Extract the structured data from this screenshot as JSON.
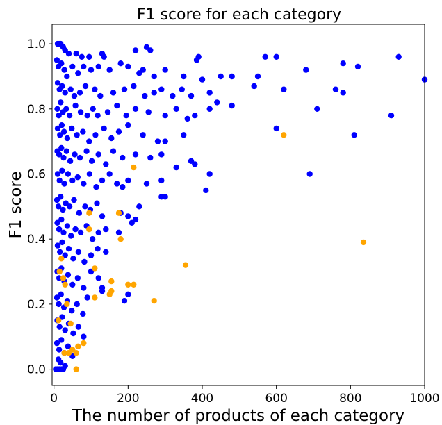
{
  "chart_data": {
    "type": "scatter",
    "title": "F1 score for each category",
    "xlabel": "The number of products of each category",
    "ylabel": "F1 score",
    "xlim": [
      -5,
      1000
    ],
    "ylim": [
      -0.05,
      1.06
    ],
    "xticks": [
      0,
      200,
      400,
      600,
      800,
      1000
    ],
    "yticks": [
      0.0,
      0.2,
      0.4,
      0.6,
      0.8,
      1.0
    ],
    "xtick_labels": [
      "0",
      "200",
      "400",
      "600",
      "800",
      "1000"
    ],
    "ytick_labels": [
      "0.0",
      "0.2",
      "0.4",
      "0.6",
      "0.8",
      "1.0"
    ],
    "grid": false,
    "colors": {
      "primary": "#0000ff",
      "secondary": "#ffa500"
    },
    "series": [
      {
        "color": "#0000ff",
        "points": [
          [
            10,
            1.0
          ],
          [
            14,
            1.0
          ],
          [
            18,
            1.0
          ],
          [
            25,
            0.99
          ],
          [
            30,
            0.98
          ],
          [
            40,
            0.97
          ],
          [
            60,
            0.97
          ],
          [
            75,
            0.96
          ],
          [
            95,
            0.96
          ],
          [
            130,
            0.97
          ],
          [
            135,
            0.96
          ],
          [
            250,
            0.99
          ],
          [
            220,
            0.98
          ],
          [
            260,
            0.98
          ],
          [
            390,
            0.96
          ],
          [
            385,
            0.95
          ],
          [
            570,
            0.96
          ],
          [
            600,
            0.96
          ],
          [
            680,
            0.92
          ],
          [
            780,
            0.94
          ],
          [
            820,
            0.93
          ],
          [
            930,
            0.96
          ],
          [
            1000,
            0.89
          ],
          [
            8,
            0.95
          ],
          [
            12,
            0.93
          ],
          [
            20,
            0.94
          ],
          [
            28,
            0.92
          ],
          [
            35,
            0.9
          ],
          [
            50,
            0.93
          ],
          [
            65,
            0.91
          ],
          [
            80,
            0.93
          ],
          [
            100,
            0.92
          ],
          [
            120,
            0.93
          ],
          [
            150,
            0.92
          ],
          [
            180,
            0.94
          ],
          [
            200,
            0.93
          ],
          [
            230,
            0.91
          ],
          [
            240,
            0.92
          ],
          [
            270,
            0.9
          ],
          [
            300,
            0.92
          ],
          [
            350,
            0.9
          ],
          [
            400,
            0.89
          ],
          [
            450,
            0.9
          ],
          [
            480,
            0.9
          ],
          [
            540,
            0.87
          ],
          [
            550,
            0.9
          ],
          [
            620,
            0.86
          ],
          [
            760,
            0.86
          ],
          [
            780,
            0.85
          ],
          [
            10,
            0.88
          ],
          [
            15,
            0.86
          ],
          [
            22,
            0.87
          ],
          [
            30,
            0.85
          ],
          [
            45,
            0.86
          ],
          [
            55,
            0.84
          ],
          [
            70,
            0.85
          ],
          [
            85,
            0.87
          ],
          [
            110,
            0.86
          ],
          [
            125,
            0.84
          ],
          [
            160,
            0.85
          ],
          [
            190,
            0.86
          ],
          [
            215,
            0.87
          ],
          [
            245,
            0.84
          ],
          [
            270,
            0.85
          ],
          [
            290,
            0.86
          ],
          [
            320,
            0.84
          ],
          [
            345,
            0.86
          ],
          [
            370,
            0.84
          ],
          [
            420,
            0.85
          ],
          [
            440,
            0.82
          ],
          [
            480,
            0.81
          ],
          [
            710,
            0.8
          ],
          [
            9,
            0.8
          ],
          [
            13,
            0.78
          ],
          [
            18,
            0.82
          ],
          [
            24,
            0.79
          ],
          [
            33,
            0.8
          ],
          [
            42,
            0.78
          ],
          [
            58,
            0.81
          ],
          [
            72,
            0.79
          ],
          [
            90,
            0.78
          ],
          [
            105,
            0.8
          ],
          [
            118,
            0.78
          ],
          [
            145,
            0.79
          ],
          [
            170,
            0.81
          ],
          [
            195,
            0.78
          ],
          [
            220,
            0.8
          ],
          [
            255,
            0.79
          ],
          [
            300,
            0.78
          ],
          [
            330,
            0.8
          ],
          [
            360,
            0.77
          ],
          [
            380,
            0.78
          ],
          [
            420,
            0.8
          ],
          [
            910,
            0.78
          ],
          [
            10,
            0.74
          ],
          [
            16,
            0.72
          ],
          [
            21,
            0.75
          ],
          [
            27,
            0.73
          ],
          [
            36,
            0.71
          ],
          [
            48,
            0.74
          ],
          [
            62,
            0.72
          ],
          [
            78,
            0.73
          ],
          [
            95,
            0.7
          ],
          [
            112,
            0.72
          ],
          [
            135,
            0.74
          ],
          [
            155,
            0.71
          ],
          [
            175,
            0.73
          ],
          [
            200,
            0.75
          ],
          [
            240,
            0.72
          ],
          [
            280,
            0.7
          ],
          [
            300,
            0.7
          ],
          [
            350,
            0.72
          ],
          [
            600,
            0.74
          ],
          [
            810,
            0.72
          ],
          [
            9,
            0.67
          ],
          [
            14,
            0.66
          ],
          [
            20,
            0.68
          ],
          [
            26,
            0.65
          ],
          [
            34,
            0.67
          ],
          [
            44,
            0.64
          ],
          [
            56,
            0.66
          ],
          [
            70,
            0.65
          ],
          [
            88,
            0.67
          ],
          [
            102,
            0.64
          ],
          [
            120,
            0.66
          ],
          [
            140,
            0.63
          ],
          [
            160,
            0.67
          ],
          [
            185,
            0.65
          ],
          [
            220,
            0.66
          ],
          [
            260,
            0.65
          ],
          [
            290,
            0.66
          ],
          [
            330,
            0.62
          ],
          [
            370,
            0.64
          ],
          [
            380,
            0.63
          ],
          [
            690,
            0.6
          ],
          [
            10,
            0.6
          ],
          [
            15,
            0.58
          ],
          [
            22,
            0.61
          ],
          [
            28,
            0.57
          ],
          [
            38,
            0.6
          ],
          [
            50,
            0.58
          ],
          [
            64,
            0.59
          ],
          [
            80,
            0.57
          ],
          [
            96,
            0.6
          ],
          [
            114,
            0.56
          ],
          [
            130,
            0.58
          ],
          [
            150,
            0.6
          ],
          [
            170,
            0.57
          ],
          [
            185,
            0.56
          ],
          [
            200,
            0.58
          ],
          [
            250,
            0.57
          ],
          [
            290,
            0.58
          ],
          [
            410,
            0.55
          ],
          [
            420,
            0.6
          ],
          [
            8,
            0.52
          ],
          [
            12,
            0.5
          ],
          [
            18,
            0.53
          ],
          [
            24,
            0.49
          ],
          [
            32,
            0.51
          ],
          [
            42,
            0.5
          ],
          [
            54,
            0.52
          ],
          [
            68,
            0.48
          ],
          [
            84,
            0.5
          ],
          [
            98,
            0.49
          ],
          [
            116,
            0.51
          ],
          [
            130,
            0.47
          ],
          [
            180,
            0.48
          ],
          [
            200,
            0.47
          ],
          [
            220,
            0.46
          ],
          [
            230,
            0.5
          ],
          [
            290,
            0.53
          ],
          [
            300,
            0.53
          ],
          [
            9,
            0.45
          ],
          [
            14,
            0.43
          ],
          [
            20,
            0.46
          ],
          [
            26,
            0.42
          ],
          [
            36,
            0.44
          ],
          [
            46,
            0.41
          ],
          [
            58,
            0.43
          ],
          [
            72,
            0.42
          ],
          [
            88,
            0.44
          ],
          [
            104,
            0.4
          ],
          [
            120,
            0.42
          ],
          [
            140,
            0.43
          ],
          [
            175,
            0.42
          ],
          [
            210,
            0.45
          ],
          [
            10,
            0.38
          ],
          [
            16,
            0.36
          ],
          [
            22,
            0.39
          ],
          [
            30,
            0.35
          ],
          [
            40,
            0.37
          ],
          [
            52,
            0.34
          ],
          [
            66,
            0.36
          ],
          [
            82,
            0.33
          ],
          [
            100,
            0.35
          ],
          [
            118,
            0.37
          ],
          [
            140,
            0.36
          ],
          [
            9,
            0.3
          ],
          [
            14,
            0.28
          ],
          [
            20,
            0.31
          ],
          [
            28,
            0.27
          ],
          [
            38,
            0.29
          ],
          [
            50,
            0.26
          ],
          [
            64,
            0.28
          ],
          [
            80,
            0.25
          ],
          [
            100,
            0.3
          ],
          [
            120,
            0.28
          ],
          [
            130,
            0.25
          ],
          [
            8,
            0.22
          ],
          [
            13,
            0.2
          ],
          [
            19,
            0.23
          ],
          [
            27,
            0.19
          ],
          [
            36,
            0.21
          ],
          [
            48,
            0.18
          ],
          [
            62,
            0.2
          ],
          [
            78,
            0.17
          ],
          [
            90,
            0.22
          ],
          [
            130,
            0.24
          ],
          [
            190,
            0.21
          ],
          [
            200,
            0.23
          ],
          [
            9,
            0.15
          ],
          [
            15,
            0.13
          ],
          [
            22,
            0.16
          ],
          [
            30,
            0.12
          ],
          [
            40,
            0.14
          ],
          [
            52,
            0.11
          ],
          [
            66,
            0.13
          ],
          [
            80,
            0.1
          ],
          [
            8,
            0.08
          ],
          [
            14,
            0.06
          ],
          [
            20,
            0.09
          ],
          [
            28,
            0.05
          ],
          [
            38,
            0.07
          ],
          [
            50,
            0.04
          ],
          [
            5,
            0.0
          ],
          [
            10,
            0.0
          ],
          [
            15,
            0.0
          ],
          [
            20,
            0.0
          ],
          [
            25,
            0.0
          ],
          [
            30,
            0.01
          ],
          [
            18,
            0.02
          ],
          [
            12,
            0.03
          ]
        ]
      },
      {
        "color": "#ffa500",
        "points": [
          [
            620,
            0.72
          ],
          [
            835,
            0.39
          ],
          [
            355,
            0.32
          ],
          [
            270,
            0.21
          ],
          [
            215,
            0.62
          ],
          [
            200,
            0.26
          ],
          [
            215,
            0.26
          ],
          [
            180,
            0.4
          ],
          [
            175,
            0.48
          ],
          [
            150,
            0.23
          ],
          [
            155,
            0.24
          ],
          [
            155,
            0.27
          ],
          [
            110,
            0.31
          ],
          [
            110,
            0.22
          ],
          [
            95,
            0.48
          ],
          [
            95,
            0.43
          ],
          [
            80,
            0.08
          ],
          [
            65,
            0.07
          ],
          [
            60,
            0.05
          ],
          [
            60,
            0.0
          ],
          [
            45,
            0.14
          ],
          [
            35,
            0.2
          ],
          [
            30,
            0.26
          ],
          [
            28,
            0.05
          ],
          [
            25,
            0.28
          ],
          [
            20,
            0.34
          ],
          [
            15,
            0.3
          ],
          [
            12,
            0.15
          ],
          [
            40,
            0.05
          ],
          [
            50,
            0.06
          ]
        ]
      }
    ]
  }
}
